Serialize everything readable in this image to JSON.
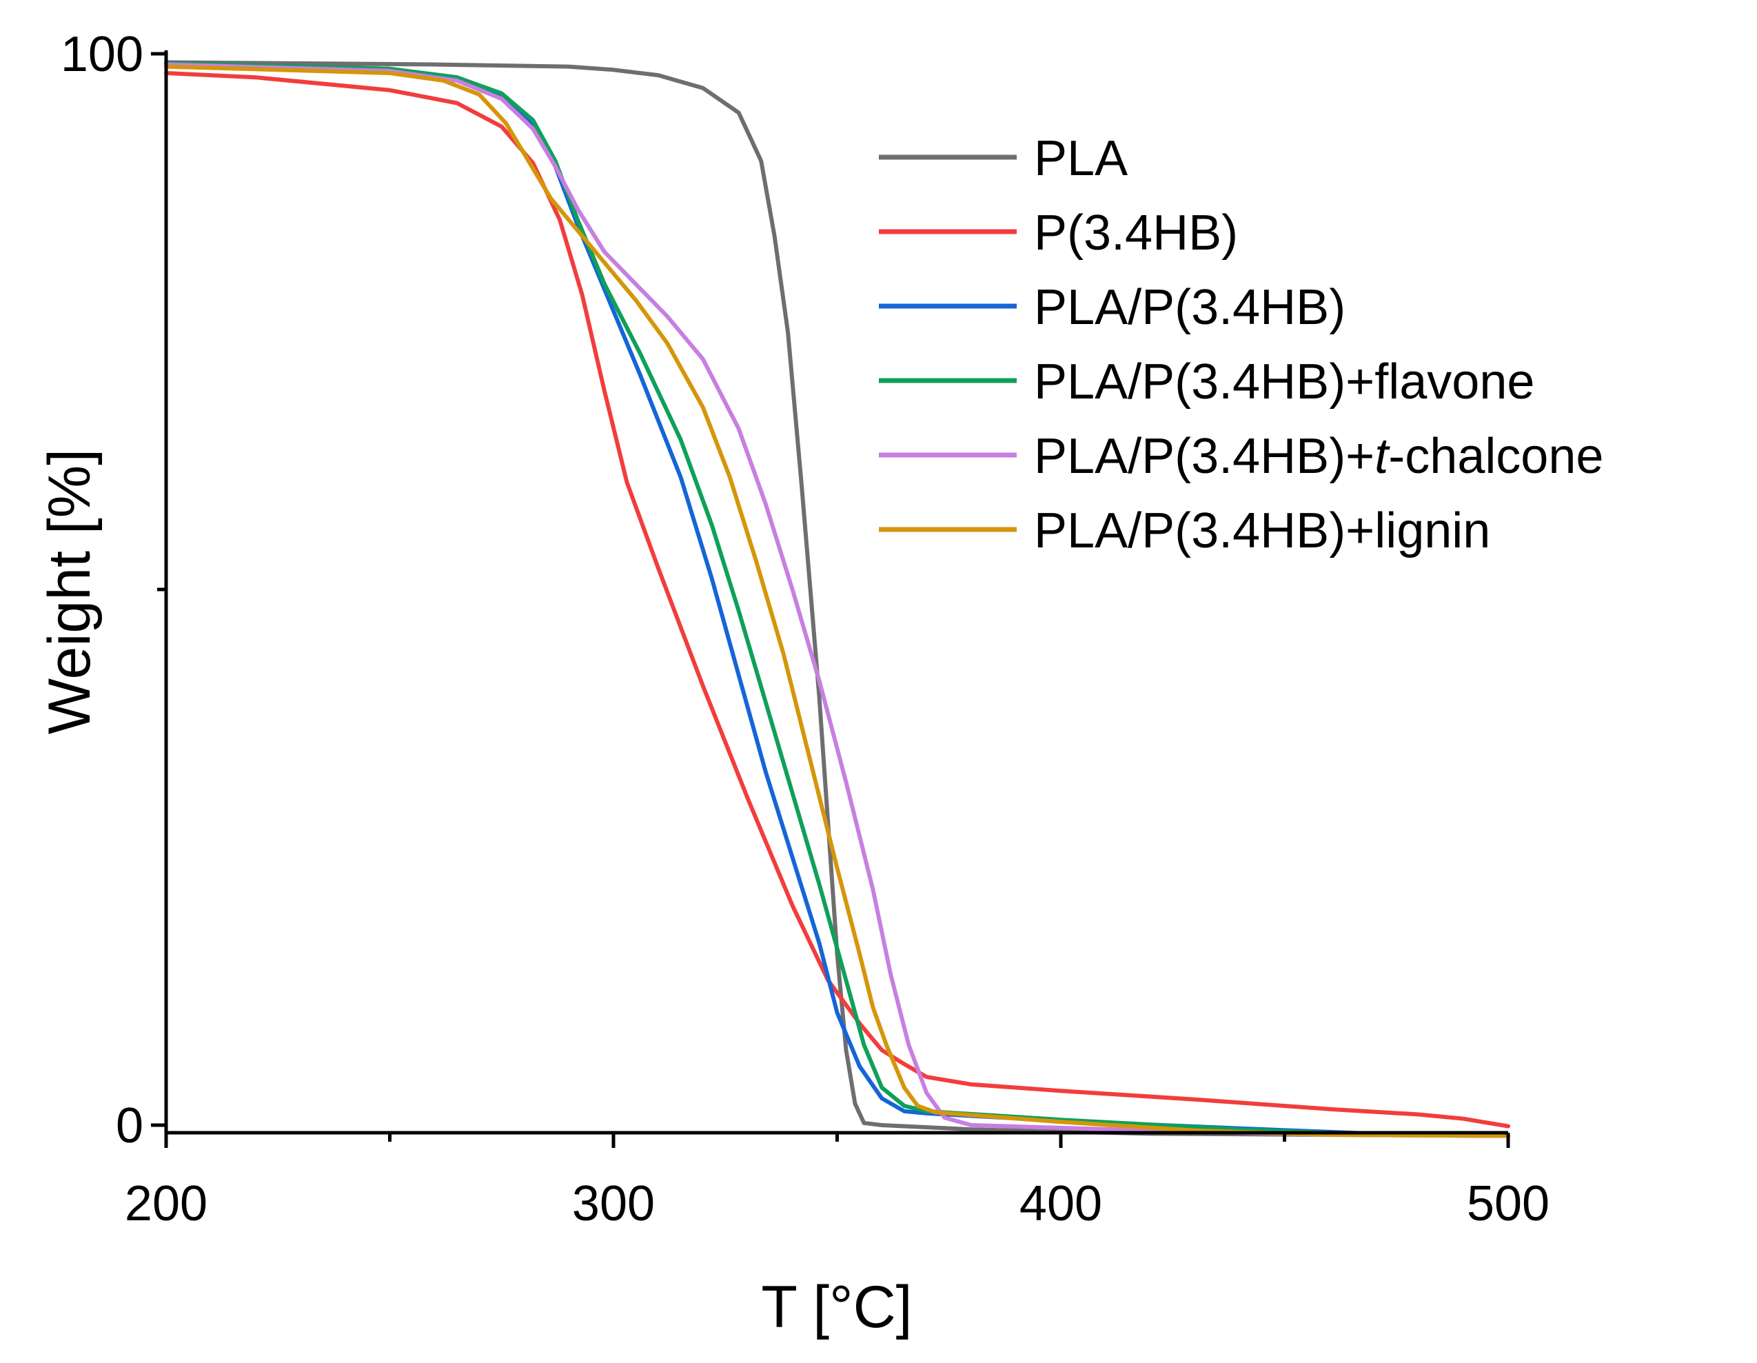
{
  "chart_data": {
    "type": "line",
    "xlabel": "T [°C]",
    "ylabel": "Weight [%]",
    "xlim": [
      200,
      500
    ],
    "ylim": [
      -1,
      100
    ],
    "xticks": [
      200,
      300,
      400,
      500
    ],
    "yticks": [
      0,
      100
    ],
    "x_minor_ticks": [
      250,
      350,
      450
    ],
    "y_minor_ticks": [
      50
    ],
    "legend_position": "upper-right",
    "series": [
      {
        "name": "PLA",
        "color": "#6e6e6e",
        "points": [
          [
            200,
            99.2
          ],
          [
            260,
            99
          ],
          [
            290,
            98.8
          ],
          [
            300,
            98.5
          ],
          [
            310,
            98
          ],
          [
            320,
            96.8
          ],
          [
            328,
            94.5
          ],
          [
            333,
            90
          ],
          [
            336,
            83
          ],
          [
            339,
            74
          ],
          [
            342,
            60
          ],
          [
            344,
            50
          ],
          [
            346,
            40
          ],
          [
            348,
            28
          ],
          [
            350,
            16
          ],
          [
            352,
            7
          ],
          [
            354,
            2
          ],
          [
            356,
            0.2
          ],
          [
            360,
            0
          ],
          [
            380,
            -0.4
          ],
          [
            420,
            -0.8
          ],
          [
            500,
            -1
          ]
        ]
      },
      {
        "name": "P(3.4HB)",
        "label_parts": [
          "P(3.4HB)"
        ],
        "color": "#f23d3d",
        "points": [
          [
            200,
            98.2
          ],
          [
            220,
            97.8
          ],
          [
            250,
            96.6
          ],
          [
            265,
            95.4
          ],
          [
            275,
            93.2
          ],
          [
            282,
            89.8
          ],
          [
            288,
            84.5
          ],
          [
            293,
            77.5
          ],
          [
            298,
            68.5
          ],
          [
            303,
            60
          ],
          [
            310,
            52
          ],
          [
            320,
            41
          ],
          [
            330,
            30.5
          ],
          [
            340,
            20.5
          ],
          [
            348,
            13.5
          ],
          [
            355,
            9.5
          ],
          [
            360,
            7
          ],
          [
            365,
            5.7
          ],
          [
            370,
            4.5
          ],
          [
            380,
            3.8
          ],
          [
            400,
            3.2
          ],
          [
            430,
            2.4
          ],
          [
            460,
            1.5
          ],
          [
            480,
            1
          ],
          [
            490,
            0.6
          ],
          [
            500,
            -0.1
          ]
        ]
      },
      {
        "name": "PLA/P(3.4HB)",
        "color": "#1565d8",
        "points": [
          [
            200,
            99.1
          ],
          [
            250,
            98.6
          ],
          [
            265,
            97.8
          ],
          [
            275,
            96.2
          ],
          [
            282,
            93.5
          ],
          [
            287,
            89.5
          ],
          [
            292,
            84
          ],
          [
            298,
            78
          ],
          [
            306,
            70
          ],
          [
            315,
            60.5
          ],
          [
            322,
            51
          ],
          [
            328,
            42
          ],
          [
            334,
            33
          ],
          [
            340,
            25
          ],
          [
            346,
            17
          ],
          [
            350,
            10.5
          ],
          [
            355,
            5.5
          ],
          [
            360,
            2.5
          ],
          [
            365,
            1.3
          ],
          [
            370,
            1.1
          ],
          [
            400,
            0.4
          ],
          [
            440,
            -0.3
          ],
          [
            470,
            -0.8
          ],
          [
            500,
            -1
          ]
        ]
      },
      {
        "name": "PLA/P(3.4HB)+flavone",
        "color": "#0fa05a",
        "points": [
          [
            200,
            99.1
          ],
          [
            250,
            98.6
          ],
          [
            265,
            97.8
          ],
          [
            275,
            96.3
          ],
          [
            282,
            93.8
          ],
          [
            287,
            90
          ],
          [
            292,
            84.5
          ],
          [
            298,
            78.5
          ],
          [
            306,
            72
          ],
          [
            315,
            64
          ],
          [
            322,
            56
          ],
          [
            328,
            48
          ],
          [
            334,
            39.5
          ],
          [
            340,
            31
          ],
          [
            346,
            22.5
          ],
          [
            352,
            13.5
          ],
          [
            356,
            7.5
          ],
          [
            360,
            3.5
          ],
          [
            365,
            1.8
          ],
          [
            370,
            1.3
          ],
          [
            400,
            0.5
          ],
          [
            440,
            -0.4
          ],
          [
            470,
            -0.9
          ],
          [
            500,
            -1
          ]
        ]
      },
      {
        "name": "PLA/P(3.4HB)+t-chalcone",
        "label_parts": [
          "PLA/P(3.4HB)+",
          "t",
          "-chalcone"
        ],
        "color": "#c77fe0",
        "points": [
          [
            200,
            99
          ],
          [
            250,
            98.4
          ],
          [
            265,
            97.5
          ],
          [
            275,
            95.8
          ],
          [
            282,
            93
          ],
          [
            287,
            89.5
          ],
          [
            292,
            85.5
          ],
          [
            298,
            81.5
          ],
          [
            305,
            78.5
          ],
          [
            312,
            75.5
          ],
          [
            320,
            71.5
          ],
          [
            328,
            65
          ],
          [
            334,
            58
          ],
          [
            340,
            50
          ],
          [
            346,
            41.5
          ],
          [
            352,
            32
          ],
          [
            358,
            22
          ],
          [
            362,
            14
          ],
          [
            366,
            7.5
          ],
          [
            370,
            3
          ],
          [
            374,
            0.7
          ],
          [
            380,
            0
          ],
          [
            420,
            -0.5
          ],
          [
            460,
            -0.9
          ],
          [
            500,
            -1
          ]
        ]
      },
      {
        "name": "PLA/P(3.4HB)+lignin",
        "color": "#d4960a",
        "points": [
          [
            200,
            98.8
          ],
          [
            250,
            98.2
          ],
          [
            262,
            97.5
          ],
          [
            270,
            96.2
          ],
          [
            276,
            93.5
          ],
          [
            281,
            90
          ],
          [
            286,
            86.5
          ],
          [
            292,
            83.5
          ],
          [
            298,
            80.5
          ],
          [
            305,
            77
          ],
          [
            312,
            73
          ],
          [
            320,
            67
          ],
          [
            326,
            60.5
          ],
          [
            332,
            52.5
          ],
          [
            338,
            44
          ],
          [
            344,
            34
          ],
          [
            350,
            24
          ],
          [
            355,
            16
          ],
          [
            358,
            11
          ],
          [
            361,
            7.5
          ],
          [
            365,
            3.5
          ],
          [
            368,
            1.8
          ],
          [
            372,
            1.2
          ],
          [
            400,
            0.3
          ],
          [
            430,
            -0.5
          ],
          [
            460,
            -0.9
          ],
          [
            500,
            -1
          ]
        ]
      }
    ]
  }
}
